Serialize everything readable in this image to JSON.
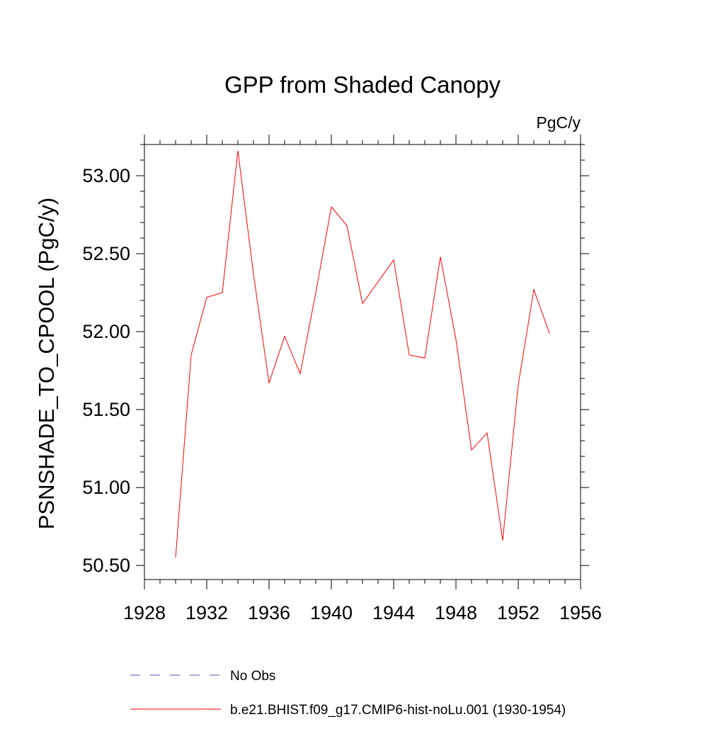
{
  "chart_data": {
    "type": "line",
    "title": "GPP from Shaded Canopy",
    "units_label": "PgC/y",
    "xlabel": "",
    "ylabel": "PSNSHADE_TO_CPOOL  (PgC/y)",
    "xlim": [
      1928,
      1956
    ],
    "ylim": [
      50.41,
      53.2
    ],
    "x_ticks": [
      1928,
      1932,
      1936,
      1940,
      1944,
      1948,
      1952,
      1956
    ],
    "x_tick_labels": [
      "1928",
      "1932",
      "1936",
      "1940",
      "1944",
      "1948",
      "1952",
      "1956"
    ],
    "y_ticks": [
      50.5,
      51.0,
      51.5,
      52.0,
      52.5,
      53.0
    ],
    "y_tick_labels": [
      "50.50",
      "51.00",
      "51.50",
      "52.00",
      "52.50",
      "53.00"
    ],
    "grid": false,
    "series": [
      {
        "name": "b.e21.BHIST.f09_g17.CMIP6-hist-noLu.001 (1930-1954)",
        "color": "#ff0000",
        "dash": "solid",
        "x": [
          1930,
          1931,
          1932,
          1933,
          1934,
          1935,
          1936,
          1937,
          1938,
          1939,
          1940,
          1941,
          1942,
          1943,
          1944,
          1945,
          1946,
          1947,
          1948,
          1949,
          1950,
          1951,
          1952,
          1953,
          1954
        ],
        "values": [
          50.55,
          51.85,
          52.22,
          52.25,
          53.16,
          52.37,
          51.67,
          51.97,
          51.73,
          52.25,
          52.8,
          52.68,
          52.18,
          52.32,
          52.46,
          51.85,
          51.83,
          52.48,
          51.95,
          51.24,
          51.35,
          50.66,
          51.66,
          52.27,
          51.99
        ]
      }
    ],
    "legend": {
      "placement": "bottom",
      "entries": [
        {
          "label": "No Obs",
          "color": "#5050b0",
          "dash": "dashed"
        },
        {
          "label": "b.e21.BHIST.f09_g17.CMIP6-hist-noLu.001 (1930-1954)",
          "color": "#ff0000",
          "dash": "solid"
        }
      ]
    }
  }
}
